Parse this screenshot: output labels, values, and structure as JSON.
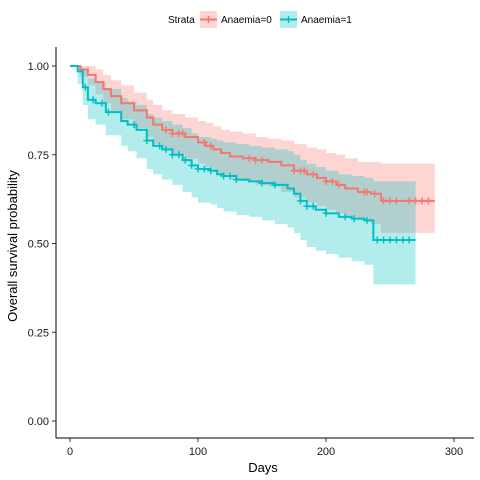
{
  "chart_data": {
    "type": "line",
    "xlabel": "Days",
    "ylabel": "Overall survival probability",
    "xlim": [
      0,
      300
    ],
    "ylim": [
      0,
      1
    ],
    "x_ticks": [
      "0",
      "100",
      "200",
      "300"
    ],
    "y_ticks": [
      "0.00",
      "0.25",
      "0.50",
      "0.75",
      "1.00"
    ],
    "x_tick_values": [
      0,
      100,
      200,
      300
    ],
    "y_tick_values": [
      0,
      0.25,
      0.5,
      0.75,
      1.0
    ],
    "grid": false,
    "legend": {
      "title": "Strata",
      "position": "top"
    },
    "series": [
      {
        "name": "Anaemia=0",
        "color": "#F8766D",
        "band_color": "#F8766D",
        "x": [
          0,
          8,
          14,
          20,
          26,
          32,
          40,
          50,
          60,
          65,
          72,
          80,
          90,
          100,
          106,
          112,
          118,
          125,
          135,
          145,
          155,
          165,
          175,
          185,
          193,
          200,
          208,
          215,
          225,
          235,
          243,
          250,
          260,
          270,
          285
        ],
        "y": [
          1.0,
          0.99,
          0.975,
          0.955,
          0.935,
          0.915,
          0.895,
          0.875,
          0.855,
          0.835,
          0.82,
          0.81,
          0.8,
          0.785,
          0.775,
          0.765,
          0.755,
          0.745,
          0.74,
          0.735,
          0.73,
          0.72,
          0.705,
          0.695,
          0.685,
          0.675,
          0.665,
          0.655,
          0.645,
          0.64,
          0.62,
          0.62,
          0.62,
          0.62,
          0.62
        ],
        "lower": [
          1.0,
          0.97,
          0.945,
          0.92,
          0.895,
          0.87,
          0.85,
          0.825,
          0.8,
          0.78,
          0.765,
          0.75,
          0.74,
          0.725,
          0.715,
          0.7,
          0.69,
          0.68,
          0.675,
          0.665,
          0.66,
          0.645,
          0.63,
          0.615,
          0.605,
          0.595,
          0.585,
          0.575,
          0.565,
          0.555,
          0.53,
          0.53,
          0.53,
          0.53,
          0.53
        ],
        "upper": [
          1.0,
          1.0,
          1.0,
          0.99,
          0.975,
          0.96,
          0.945,
          0.925,
          0.905,
          0.89,
          0.875,
          0.865,
          0.855,
          0.845,
          0.84,
          0.83,
          0.82,
          0.815,
          0.81,
          0.8,
          0.795,
          0.79,
          0.78,
          0.77,
          0.765,
          0.755,
          0.75,
          0.74,
          0.73,
          0.73,
          0.725,
          0.725,
          0.725,
          0.725,
          0.725
        ],
        "censored_x": [
          75,
          80,
          85,
          88,
          105,
          110,
          140,
          145,
          150,
          175,
          180,
          183,
          190,
          200,
          205,
          210,
          230,
          232,
          238,
          245,
          250,
          255,
          265,
          270,
          275,
          280
        ]
      },
      {
        "name": "Anaemia=1",
        "color": "#00BFC4",
        "band_color": "#00BFC4",
        "x": [
          0,
          6,
          10,
          14,
          20,
          28,
          40,
          45,
          52,
          60,
          65,
          72,
          80,
          88,
          95,
          100,
          110,
          115,
          120,
          130,
          140,
          150,
          160,
          170,
          175,
          180,
          185,
          192,
          200,
          210,
          220,
          230,
          237,
          250,
          260,
          270
        ],
        "y": [
          1.0,
          0.985,
          0.94,
          0.905,
          0.895,
          0.87,
          0.845,
          0.835,
          0.82,
          0.79,
          0.775,
          0.765,
          0.75,
          0.735,
          0.72,
          0.71,
          0.705,
          0.695,
          0.69,
          0.68,
          0.675,
          0.67,
          0.665,
          0.655,
          0.64,
          0.62,
          0.605,
          0.595,
          0.585,
          0.575,
          0.57,
          0.565,
          0.51,
          0.51,
          0.51,
          0.51
        ],
        "lower": [
          1.0,
          0.95,
          0.89,
          0.85,
          0.835,
          0.805,
          0.775,
          0.76,
          0.74,
          0.71,
          0.695,
          0.68,
          0.665,
          0.645,
          0.63,
          0.615,
          0.61,
          0.6,
          0.59,
          0.58,
          0.575,
          0.565,
          0.555,
          0.545,
          0.53,
          0.51,
          0.49,
          0.48,
          0.47,
          0.46,
          0.45,
          0.44,
          0.385,
          0.385,
          0.385,
          0.385
        ],
        "upper": [
          1.0,
          1.0,
          0.99,
          0.965,
          0.955,
          0.935,
          0.91,
          0.9,
          0.89,
          0.865,
          0.855,
          0.845,
          0.835,
          0.825,
          0.81,
          0.8,
          0.795,
          0.79,
          0.785,
          0.78,
          0.775,
          0.77,
          0.765,
          0.76,
          0.75,
          0.735,
          0.725,
          0.715,
          0.705,
          0.695,
          0.69,
          0.685,
          0.675,
          0.675,
          0.675,
          0.675
        ],
        "censored_x": [
          12,
          18,
          25,
          30,
          50,
          60,
          70,
          75,
          80,
          85,
          90,
          95,
          100,
          105,
          110,
          120,
          125,
          130,
          150,
          160,
          180,
          185,
          190,
          200,
          215,
          222,
          232,
          240,
          245,
          250,
          255,
          260,
          265
        ]
      }
    ]
  }
}
